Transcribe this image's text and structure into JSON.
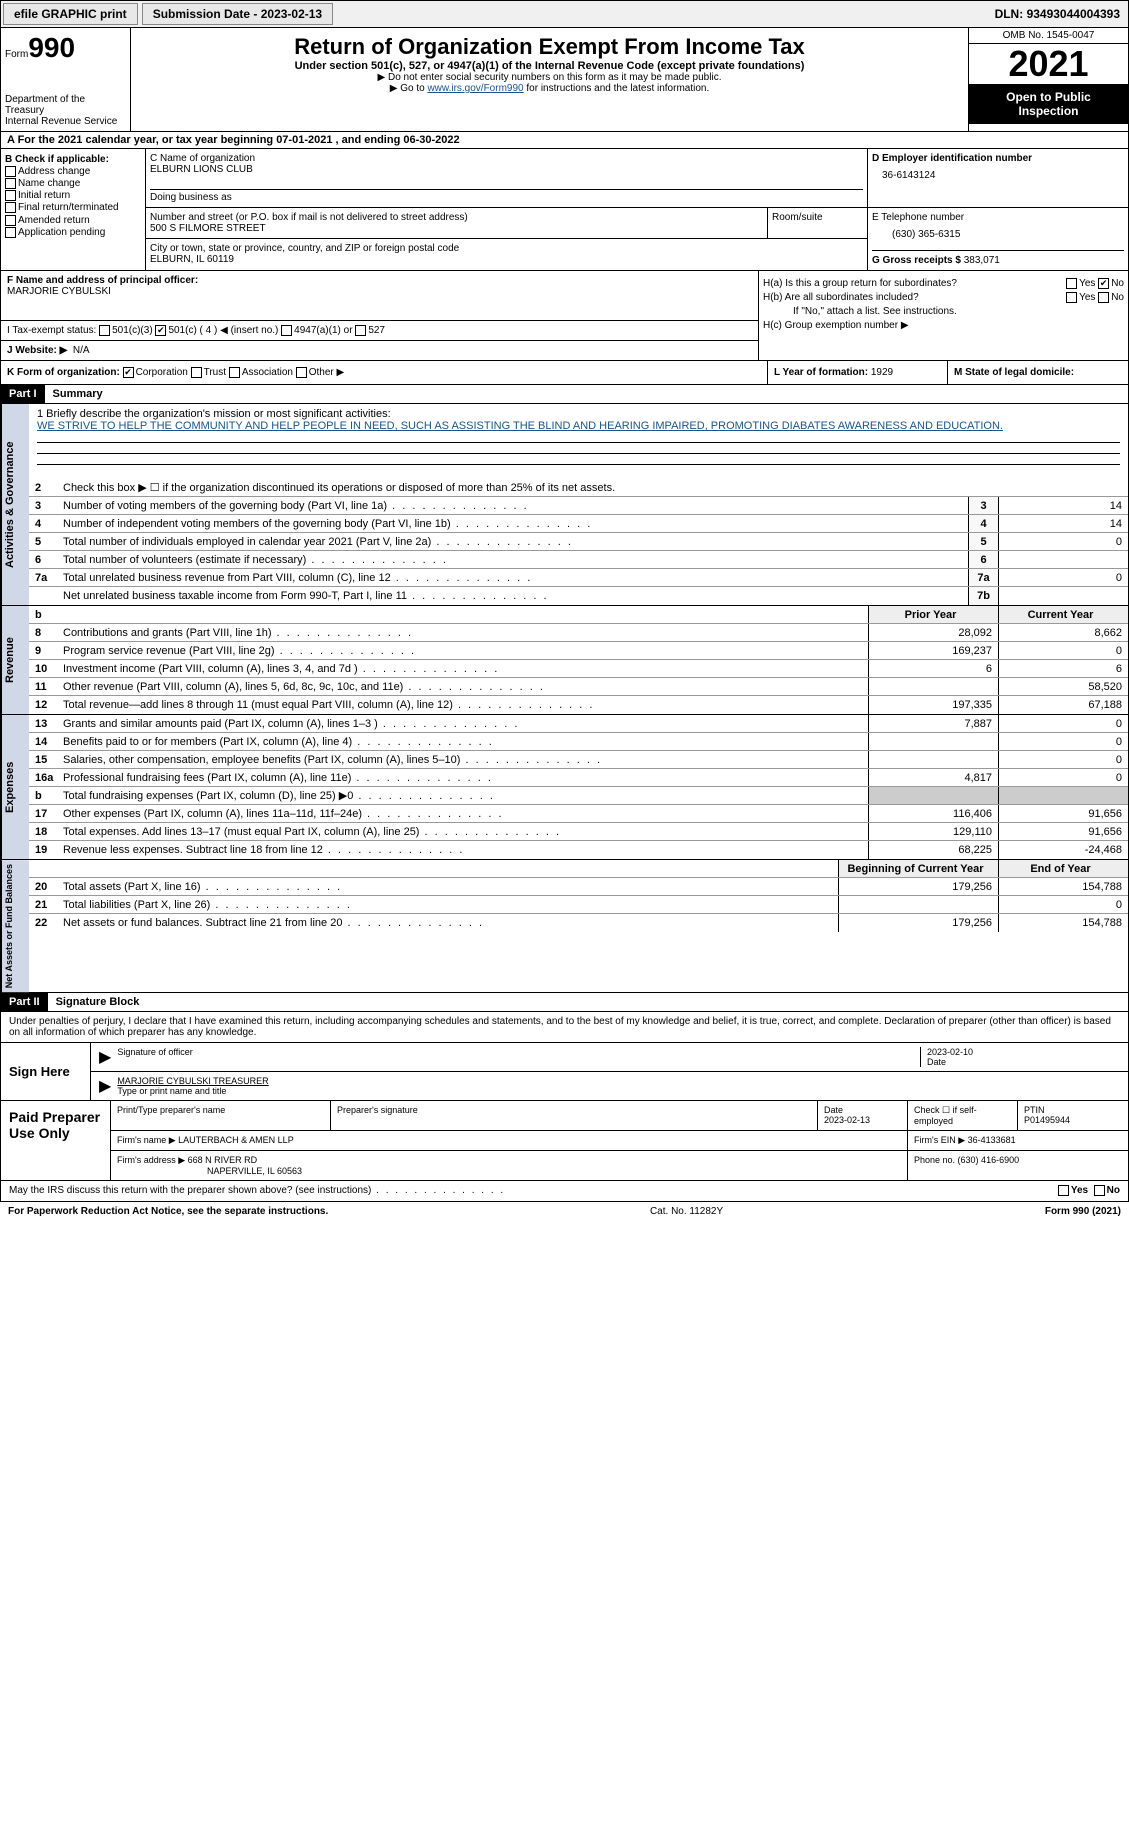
{
  "topbar": {
    "efile": "efile GRAPHIC print",
    "sub_label": "Submission Date - ",
    "sub_date": "2023-02-13",
    "dln_label": "DLN: ",
    "dln": "93493044004393"
  },
  "header": {
    "form_label": "Form",
    "form_num": "990",
    "dept": "Department of the Treasury",
    "irs": "Internal Revenue Service",
    "title": "Return of Organization Exempt From Income Tax",
    "sub1": "Under section 501(c), 527, or 4947(a)(1) of the Internal Revenue Code (except private foundations)",
    "sub2": "▶ Do not enter social security numbers on this form as it may be made public.",
    "sub3_pre": "▶ Go to ",
    "sub3_link": "www.irs.gov/Form990",
    "sub3_post": " for instructions and the latest information.",
    "omb": "OMB No. 1545-0047",
    "year": "2021",
    "open": "Open to Public Inspection"
  },
  "row_a": "A For the 2021 calendar year, or tax year beginning 07-01-2021    , and ending 06-30-2022",
  "col_b": {
    "hdr": "B Check if applicable:",
    "i1": "Address change",
    "i2": "Name change",
    "i3": "Initial return",
    "i4": "Final return/terminated",
    "i5": "Amended return",
    "i6": "Application pending"
  },
  "col_c": {
    "name_lbl": "C Name of organization",
    "name": "ELBURN LIONS CLUB",
    "dba_lbl": "Doing business as",
    "addr_lbl": "Number and street (or P.O. box if mail is not delivered to street address)",
    "room_lbl": "Room/suite",
    "addr": "500 S FILMORE STREET",
    "city_lbl": "City or town, state or province, country, and ZIP or foreign postal code",
    "city": "ELBURN, IL  60119"
  },
  "col_d": {
    "ein_lbl": "D Employer identification number",
    "ein": "36-6143124",
    "tel_lbl": "E Telephone number",
    "tel": "(630) 365-6315",
    "gross_lbl": "G Gross receipts $ ",
    "gross": "383,071"
  },
  "col_f": {
    "lbl": "F Name and address of principal officer:",
    "name": "MARJORIE CYBULSKI"
  },
  "col_h": {
    "ha": "H(a)  Is this a group return for subordinates?",
    "hb": "H(b)  Are all subordinates included?",
    "hb_note": "If \"No,\" attach a list. See instructions.",
    "hc": "H(c)  Group exemption number ▶",
    "yes": "Yes",
    "no": "No"
  },
  "row_i": {
    "lbl": "I   Tax-exempt status:",
    "o1": "501(c)(3)",
    "o2": "501(c) ( 4 ) ◀ (insert no.)",
    "o3": "4947(a)(1) or",
    "o4": "527"
  },
  "row_j": {
    "lbl": "J   Website: ▶",
    "val": "N/A"
  },
  "row_k": {
    "lbl": "K Form of organization:",
    "o1": "Corporation",
    "o2": "Trust",
    "o3": "Association",
    "o4": "Other ▶"
  },
  "row_l": {
    "lbl": "L Year of formation: ",
    "val": "1929"
  },
  "row_m": {
    "lbl": "M State of legal domicile:"
  },
  "part1": {
    "hdr": "Part I",
    "title": "Summary"
  },
  "mission": {
    "l1": "1   Briefly describe the organization's mission or most significant activities:",
    "txt": "WE STRIVE TO HELP THE COMMUNITY AND HELP PEOPLE IN NEED, SUCH AS ASSISTING THE BLIND AND HEARING IMPAIRED, PROMOTING DIABATES AWARENESS AND EDUCATION."
  },
  "gov_lines": [
    {
      "n": "2",
      "t": "Check this box ▶ ☐  if the organization discontinued its operations or disposed of more than 25% of its net assets."
    },
    {
      "n": "3",
      "t": "Number of voting members of the governing body (Part VI, line 1a)",
      "box": "3",
      "v": "14"
    },
    {
      "n": "4",
      "t": "Number of independent voting members of the governing body (Part VI, line 1b)",
      "box": "4",
      "v": "14"
    },
    {
      "n": "5",
      "t": "Total number of individuals employed in calendar year 2021 (Part V, line 2a)",
      "box": "5",
      "v": "0"
    },
    {
      "n": "6",
      "t": "Total number of volunteers (estimate if necessary)",
      "box": "6",
      "v": ""
    },
    {
      "n": "7a",
      "t": "Total unrelated business revenue from Part VIII, column (C), line 12",
      "box": "7a",
      "v": "0"
    },
    {
      "n": "",
      "t": "Net unrelated business taxable income from Form 990-T, Part I, line 11",
      "box": "7b",
      "v": ""
    }
  ],
  "rev_hdr": {
    "b": "b",
    "prior": "Prior Year",
    "curr": "Current Year"
  },
  "rev_lines": [
    {
      "n": "8",
      "t": "Contributions and grants (Part VIII, line 1h)",
      "p": "28,092",
      "c": "8,662"
    },
    {
      "n": "9",
      "t": "Program service revenue (Part VIII, line 2g)",
      "p": "169,237",
      "c": "0"
    },
    {
      "n": "10",
      "t": "Investment income (Part VIII, column (A), lines 3, 4, and 7d )",
      "p": "6",
      "c": "6"
    },
    {
      "n": "11",
      "t": "Other revenue (Part VIII, column (A), lines 5, 6d, 8c, 9c, 10c, and 11e)",
      "p": "",
      "c": "58,520"
    },
    {
      "n": "12",
      "t": "Total revenue—add lines 8 through 11 (must equal Part VIII, column (A), line 12)",
      "p": "197,335",
      "c": "67,188"
    }
  ],
  "exp_lines": [
    {
      "n": "13",
      "t": "Grants and similar amounts paid (Part IX, column (A), lines 1–3 )",
      "p": "7,887",
      "c": "0"
    },
    {
      "n": "14",
      "t": "Benefits paid to or for members (Part IX, column (A), line 4)",
      "p": "",
      "c": "0"
    },
    {
      "n": "15",
      "t": "Salaries, other compensation, employee benefits (Part IX, column (A), lines 5–10)",
      "p": "",
      "c": "0"
    },
    {
      "n": "16a",
      "t": "Professional fundraising fees (Part IX, column (A), line 11e)",
      "p": "4,817",
      "c": "0"
    },
    {
      "n": "b",
      "t": "Total fundraising expenses (Part IX, column (D), line 25) ▶0",
      "p": "SHADE",
      "c": "SHADE"
    },
    {
      "n": "17",
      "t": "Other expenses (Part IX, column (A), lines 11a–11d, 11f–24e)",
      "p": "116,406",
      "c": "91,656"
    },
    {
      "n": "18",
      "t": "Total expenses. Add lines 13–17 (must equal Part IX, column (A), line 25)",
      "p": "129,110",
      "c": "91,656"
    },
    {
      "n": "19",
      "t": "Revenue less expenses. Subtract line 18 from line 12",
      "p": "68,225",
      "c": "-24,468"
    }
  ],
  "na_hdr": {
    "prior": "Beginning of Current Year",
    "curr": "End of Year"
  },
  "na_lines": [
    {
      "n": "20",
      "t": "Total assets (Part X, line 16)",
      "p": "179,256",
      "c": "154,788"
    },
    {
      "n": "21",
      "t": "Total liabilities (Part X, line 26)",
      "p": "",
      "c": "0"
    },
    {
      "n": "22",
      "t": "Net assets or fund balances. Subtract line 21 from line 20",
      "p": "179,256",
      "c": "154,788"
    }
  ],
  "side": {
    "gov": "Activities & Governance",
    "rev": "Revenue",
    "exp": "Expenses",
    "na": "Net Assets or Fund Balances"
  },
  "part2": {
    "hdr": "Part II",
    "title": "Signature Block"
  },
  "sig": {
    "decl": "Under penalties of perjury, I declare that I have examined this return, including accompanying schedules and statements, and to the best of my knowledge and belief, it is true, correct, and complete. Declaration of preparer (other than officer) is based on all information of which preparer has any knowledge.",
    "sign_here": "Sign Here",
    "sig_lbl": "Signature of officer",
    "date_lbl": "Date",
    "date": "2023-02-10",
    "name": "MARJORIE CYBULSKI  TREASURER",
    "name_lbl": "Type or print name and title"
  },
  "prep": {
    "hdr": "Paid Preparer Use Only",
    "c1": "Print/Type preparer's name",
    "c2": "Preparer's signature",
    "c3_lbl": "Date",
    "c3": "2023-02-13",
    "c4": "Check ☐ if self-employed",
    "c5_lbl": "PTIN",
    "c5": "P01495944",
    "firm_lbl": "Firm's name    ▶ ",
    "firm": "LAUTERBACH & AMEN LLP",
    "ein_lbl": "Firm's EIN ▶ ",
    "ein": "36-4133681",
    "addr_lbl": "Firm's address ▶ ",
    "addr1": "668 N RIVER RD",
    "addr2": "NAPERVILLE, IL  60563",
    "ph_lbl": "Phone no. ",
    "ph": "(630) 416-6900"
  },
  "footer": {
    "q": "May the IRS discuss this return with the preparer shown above? (see instructions)",
    "yes": "Yes",
    "no": "No"
  },
  "bottom": {
    "pra": "For Paperwork Reduction Act Notice, see the separate instructions.",
    "cat": "Cat. No. 11282Y",
    "form": "Form 990 (2021)"
  }
}
